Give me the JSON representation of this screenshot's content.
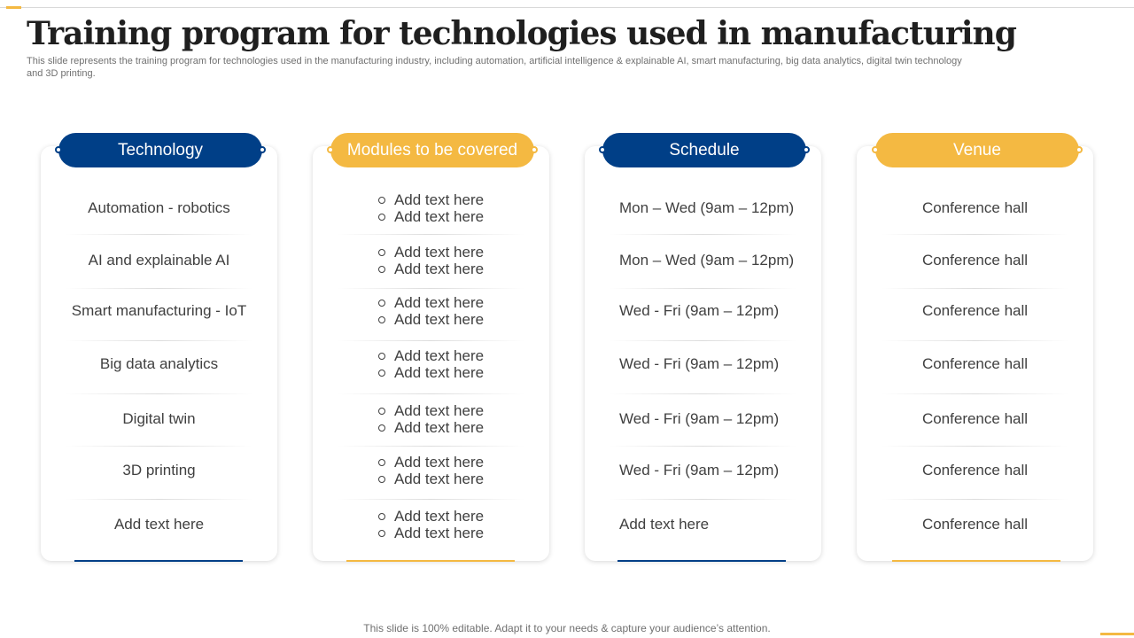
{
  "slide": {
    "title": "Training program for technologies used in manufacturing",
    "subtitle": "This slide represents the training program for technologies used in the manufacturing industry, including automation, artificial intelligence & explainable AI, smart manufacturing, big data analytics, digital twin technology and 3D printing.",
    "footer": "This slide is 100% editable. Adapt it to your needs & capture your audience’s attention."
  },
  "colors": {
    "blue": "#003f87",
    "orange": "#f4b942"
  },
  "columns": {
    "technology": {
      "header": "Technology",
      "rows": [
        "Automation - robotics",
        "AI and explainable AI",
        "Smart manufacturing  - IoT",
        "Big data analytics",
        "Digital twin",
        "3D printing",
        "Add text here"
      ]
    },
    "modules": {
      "header": "Modules to be covered",
      "rows": [
        [
          "Add text here",
          "Add text here"
        ],
        [
          "Add text here",
          "Add text here"
        ],
        [
          "Add text here",
          "Add text here"
        ],
        [
          "Add text here",
          "Add text here"
        ],
        [
          "Add text here",
          "Add text here"
        ],
        [
          "Add text here",
          "Add text here"
        ],
        [
          "Add text here",
          "Add text here"
        ]
      ]
    },
    "schedule": {
      "header": "Schedule",
      "rows": [
        "Mon – Wed (9am – 12pm)",
        "Mon – Wed (9am – 12pm)",
        "Wed - Fri (9am – 12pm)",
        "Wed - Fri (9am – 12pm)",
        "Wed - Fri (9am – 12pm)",
        "Wed - Fri (9am – 12pm)",
        "Add text here"
      ]
    },
    "venue": {
      "header": "Venue",
      "rows": [
        "Conference hall",
        "Conference hall",
        "Conference hall",
        "Conference hall",
        "Conference hall",
        "Conference hall",
        "Conference hall"
      ]
    }
  }
}
